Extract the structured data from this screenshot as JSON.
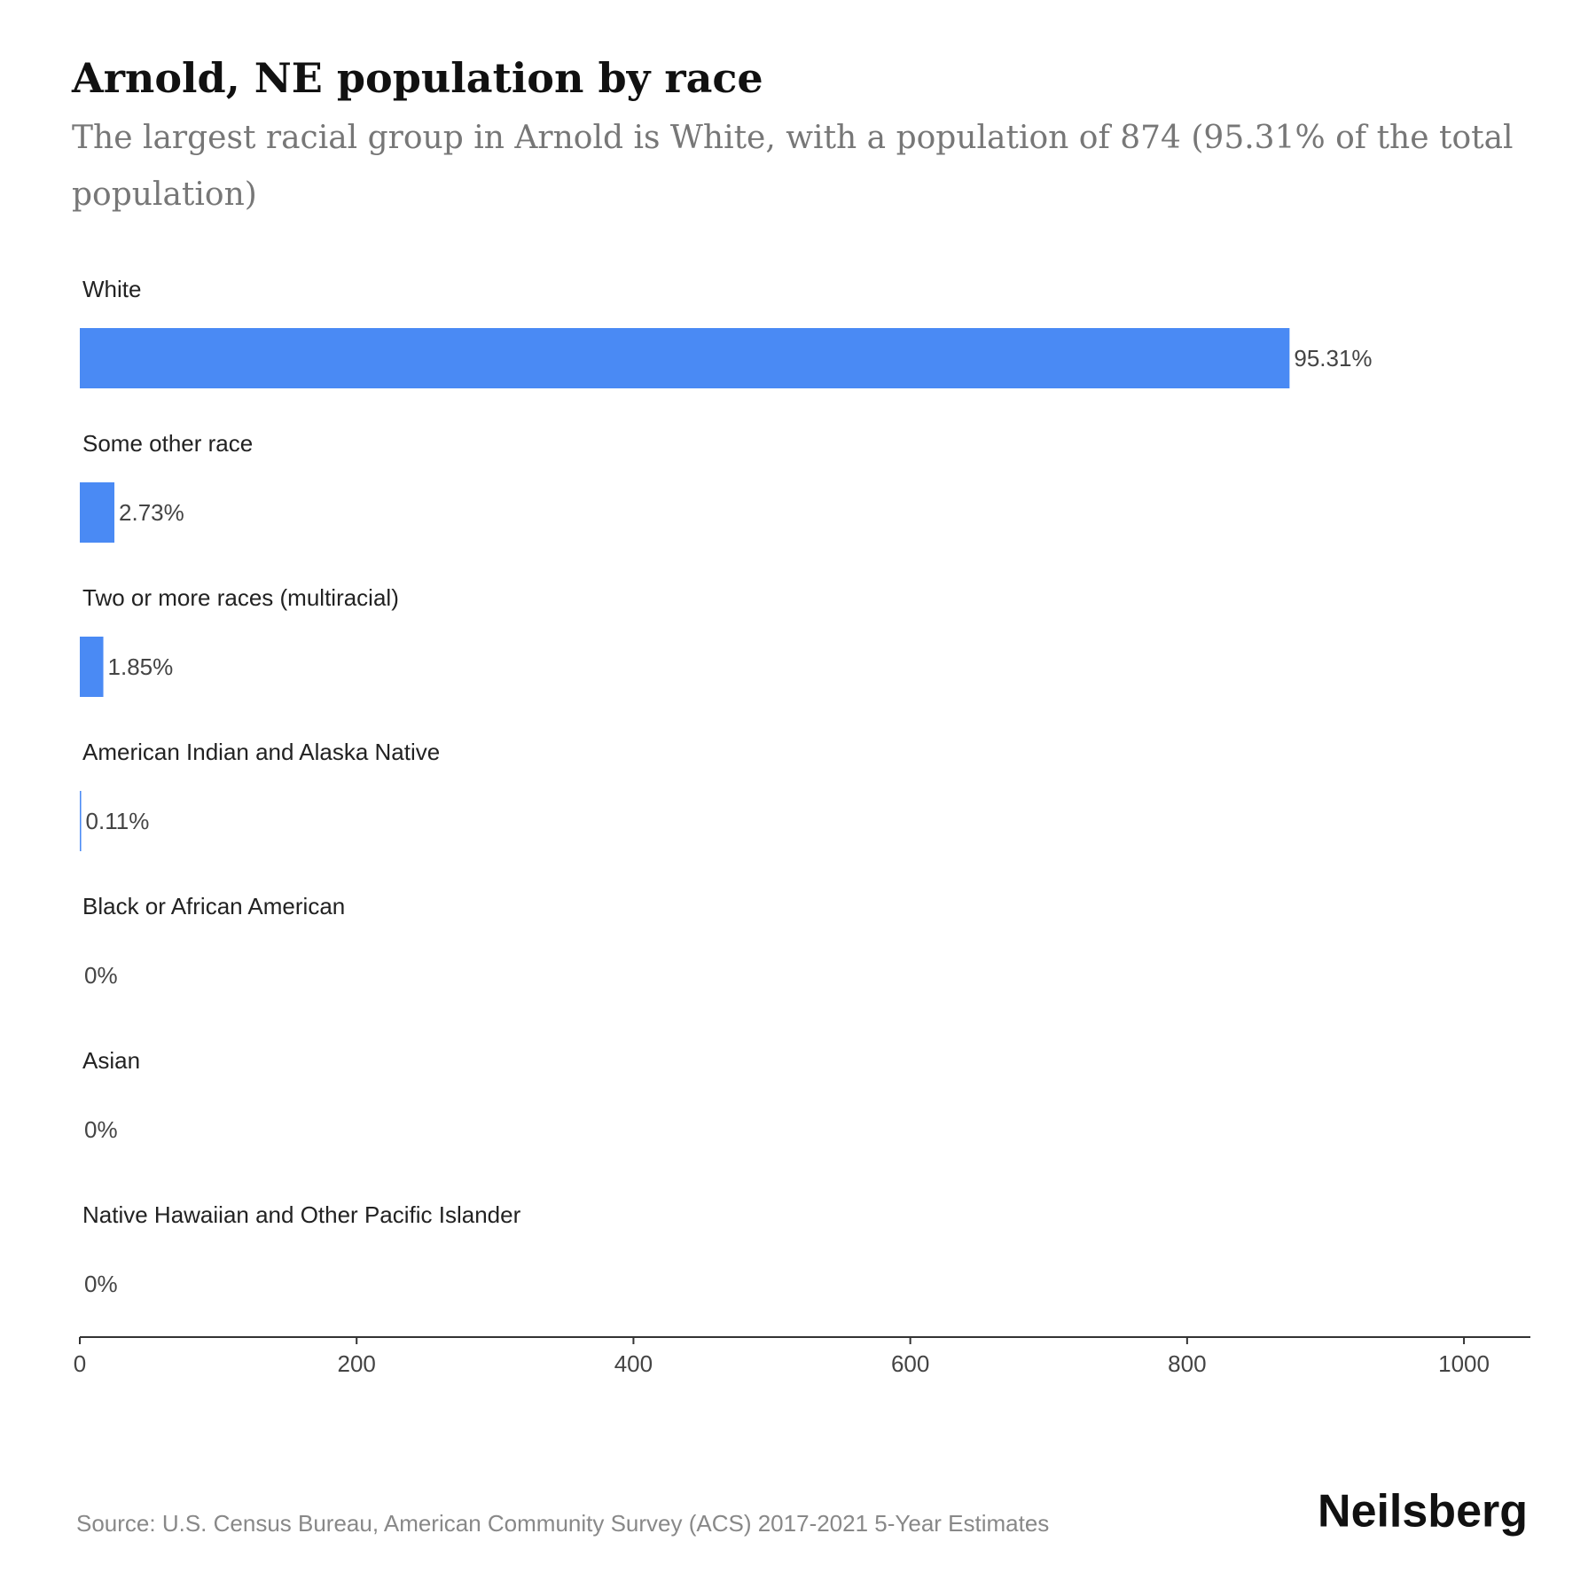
{
  "chart_data": {
    "type": "bar",
    "orientation": "horizontal",
    "title": "Arnold, NE population by race",
    "subtitle": [
      "The largest racial group in Arnold is White, with a population of 874 (95.31% of the total",
      "population)"
    ],
    "categories": [
      "White",
      "Some other race",
      "Two or more races (multiracial)",
      "American Indian and Alaska Native",
      "Black or African American",
      "Asian",
      "Native Hawaiian and Other Pacific Islander"
    ],
    "values": [
      874,
      25,
      17,
      1,
      0,
      0,
      0
    ],
    "value_labels": [
      "95.31%",
      "2.73%",
      "1.85%",
      "0.11%",
      "0%",
      "0%",
      "0%"
    ],
    "color": "#4a8af4",
    "xlim": [
      0,
      1048
    ],
    "xticks": [
      0,
      200,
      400,
      600,
      800,
      1000
    ],
    "source": "Source: U.S. Census Bureau, American Community Survey (ACS) 2017-2021 5-Year Estimates",
    "brand": "Neilsberg"
  }
}
